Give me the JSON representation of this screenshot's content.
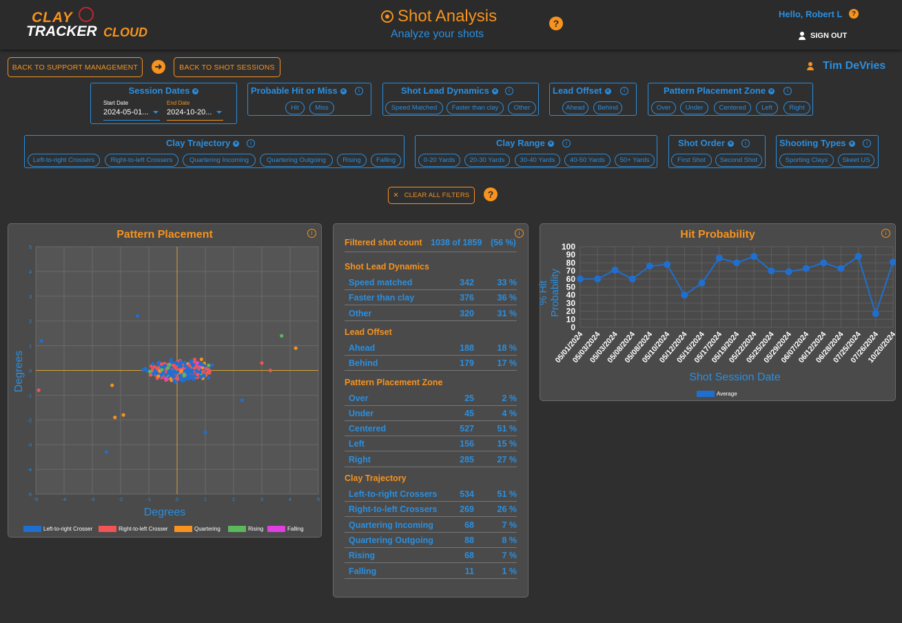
{
  "header": {
    "logo_line1": "CLAY",
    "logo_line2": "TRACKER",
    "logo_line3": "CLOUD",
    "title": "Shot Analysis",
    "subtitle": "Analyze your shots",
    "help": "?",
    "greeting": "Hello, Robert L",
    "sign_out": "SIGN OUT"
  },
  "nav": {
    "back_support": "BACK TO SUPPORT MANAGEMENT",
    "back_sessions": "BACK TO SHOT SESSIONS",
    "arrow": "➜",
    "user_name": "Tim DeVries"
  },
  "filters": {
    "session_dates": {
      "title": "Session Dates",
      "start_label": "Start Date",
      "start_value": "2024-05-01...",
      "end_label": "End Date",
      "end_value": "2024-10-20..."
    },
    "hit_miss": {
      "title": "Probable Hit or Miss",
      "chips": [
        "Hit",
        "Miss"
      ]
    },
    "lead_dynamics": {
      "title": "Shot Lead Dynamics",
      "chips": [
        "Speed Matched",
        "Faster than clay",
        "Other"
      ]
    },
    "lead_offset": {
      "title": "Lead Offset",
      "chips": [
        "Ahead",
        "Behind"
      ]
    },
    "placement_zone": {
      "title": "Pattern Placement Zone",
      "chips": [
        "Over",
        "Under",
        "Centered",
        "Left",
        "Right"
      ]
    },
    "trajectory": {
      "title": "Clay Trajectory",
      "chips": [
        "Left-to-right Crossers",
        "Right-to-left Crossers",
        "Quartering Incoming",
        "Quartering Outgoing",
        "Rising",
        "Falling"
      ]
    },
    "range": {
      "title": "Clay Range",
      "chips": [
        "0-20 Yards",
        "20-30 Yards",
        "30-40 Yards",
        "40-50 Yards",
        "50+ Yards"
      ]
    },
    "shot_order": {
      "title": "Shot Order",
      "chips": [
        "First Shot",
        "Second Shot"
      ]
    },
    "shooting_types": {
      "title": "Shooting Types",
      "chips": [
        "Sporting Clays",
        "Skeet US"
      ]
    },
    "clear_all": "CLEAR ALL FILTERS",
    "clear_icon": "✕"
  },
  "pattern_placement": {
    "title": "Pattern Placement",
    "xlabel": "Degrees",
    "ylabel": "Degrees",
    "ticks": [
      "-5",
      "-4",
      "-3",
      "-2",
      "-1",
      "0",
      "1",
      "2",
      "3",
      "4",
      "5"
    ],
    "y_ticks": [
      "5",
      "4",
      "3",
      "2",
      "1",
      "0",
      "-1",
      "-2",
      "-3",
      "-4",
      "-5"
    ],
    "legend": [
      {
        "name": "Left-to-right Crosser",
        "color": "#1f6fd1"
      },
      {
        "name": "Right-to-left Crosser",
        "color": "#f05454"
      },
      {
        "name": "Quartering",
        "color": "#f7931e"
      },
      {
        "name": "Rising",
        "color": "#5cb85c"
      },
      {
        "name": "Falling",
        "color": "#e040e0"
      }
    ]
  },
  "stats": {
    "filtered_label": "Filtered shot count",
    "filtered_value": "1038 of 1859",
    "filtered_pct": "(56 %)",
    "sections": [
      {
        "title": "Shot Lead Dynamics",
        "rows": [
          {
            "label": "Speed matched",
            "count": "342",
            "pct": "33 %"
          },
          {
            "label": "Faster than clay",
            "count": "376",
            "pct": "36 %"
          },
          {
            "label": "Other",
            "count": "320",
            "pct": "31 %"
          }
        ]
      },
      {
        "title": "Lead Offset",
        "rows": [
          {
            "label": "Ahead",
            "count": "188",
            "pct": "18 %"
          },
          {
            "label": "Behind",
            "count": "179",
            "pct": "17 %"
          }
        ]
      },
      {
        "title": "Pattern Placement Zone",
        "rows": [
          {
            "label": "Over",
            "count": "25",
            "pct": "2 %"
          },
          {
            "label": "Under",
            "count": "45",
            "pct": "4 %"
          },
          {
            "label": "Centered",
            "count": "527",
            "pct": "51 %"
          },
          {
            "label": "Left",
            "count": "156",
            "pct": "15 %"
          },
          {
            "label": "Right",
            "count": "285",
            "pct": "27 %"
          }
        ]
      },
      {
        "title": "Clay Trajectory",
        "rows": [
          {
            "label": "Left-to-right Crossers",
            "count": "534",
            "pct": "51 %"
          },
          {
            "label": "Right-to-left Crossers",
            "count": "269",
            "pct": "26 %"
          },
          {
            "label": "Quartering Incoming",
            "count": "68",
            "pct": "7 %"
          },
          {
            "label": "Quartering Outgoing",
            "count": "88",
            "pct": "8 %"
          },
          {
            "label": "Rising",
            "count": "68",
            "pct": "7 %"
          },
          {
            "label": "Falling",
            "count": "11",
            "pct": "1 %"
          }
        ]
      }
    ]
  },
  "chart_data": {
    "type": "line",
    "title": "Hit Probability",
    "xlabel": "Shot Session Date",
    "ylabel": "% Hit Probability",
    "ylim": [
      0,
      100
    ],
    "y_ticks": [
      "100",
      "90",
      "80",
      "70",
      "60",
      "50",
      "40",
      "30",
      "20",
      "10",
      "0"
    ],
    "categories": [
      "05/01/2024",
      "05/03/2024",
      "05/03/2024",
      "05/08/2024",
      "05/08/2024",
      "05/10/2024",
      "05/12/2024",
      "05/15/2024",
      "05/17/2024",
      "05/19/2024",
      "05/22/2024",
      "05/25/2024",
      "05/29/2024",
      "06/07/2024",
      "06/12/2024",
      "06/28/2024",
      "07/25/2024",
      "07/26/2024",
      "10/20/2024"
    ],
    "series": [
      {
        "name": "Average",
        "color": "#1f6fd1",
        "values": [
          60,
          60,
          71,
          60,
          76,
          78,
          40,
          55,
          86,
          80,
          88,
          70,
          69,
          73,
          80,
          73,
          88,
          17,
          81
        ]
      }
    ],
    "legend_position": "bottom"
  }
}
